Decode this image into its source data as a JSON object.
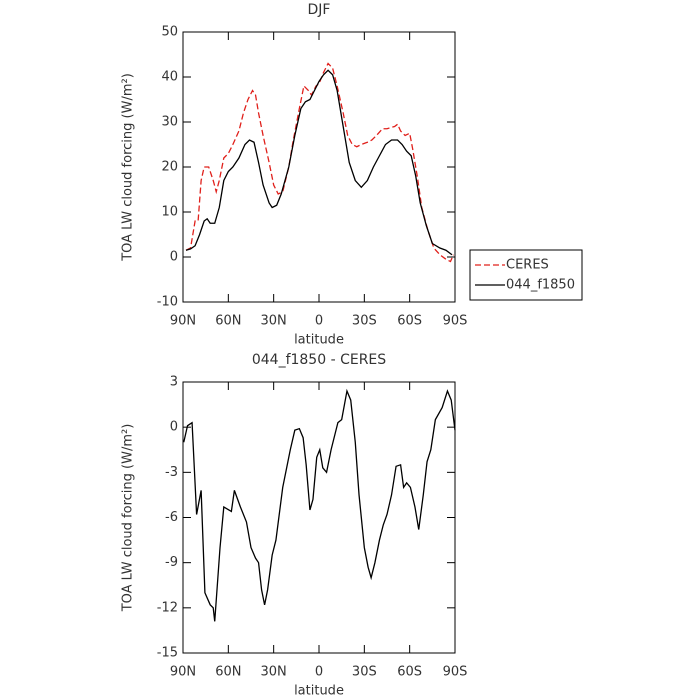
{
  "chart_data": [
    {
      "type": "line",
      "title": "DJF",
      "xlabel": "latitude",
      "ylabel": "TOA LW cloud forcing (W/m²)",
      "xlim": [
        90,
        -90
      ],
      "xticks": [
        {
          "value": 90,
          "label": "90N"
        },
        {
          "value": 60,
          "label": "60N"
        },
        {
          "value": 30,
          "label": "30N"
        },
        0,
        {
          "value": -30,
          "label": "30S"
        },
        {
          "value": -60,
          "label": "60S"
        },
        {
          "value": -90,
          "label": "90S"
        }
      ],
      "ylim": [
        -10,
        50
      ],
      "yticks": [
        -10,
        0,
        10,
        20,
        30,
        40,
        50
      ],
      "legend": "outside-right",
      "series": [
        {
          "name": "CERES",
          "color": "#e0201b",
          "line_style": "dashed",
          "x": [
            88,
            85,
            82,
            80,
            78,
            76,
            73,
            70,
            68,
            66,
            63,
            60,
            57,
            53,
            50,
            47,
            44,
            42,
            40,
            37,
            33,
            30,
            27,
            24,
            20,
            17,
            13,
            10,
            7,
            5,
            2,
            0,
            -3,
            -6,
            -9,
            -12,
            -16,
            -19,
            -22,
            -25,
            -28,
            -32,
            -35,
            -38,
            -42,
            -45,
            -50,
            -52,
            -54,
            -57,
            -60,
            -62,
            -65,
            -68,
            -72,
            -76,
            -80,
            -84,
            -87,
            -89
          ],
          "values": [
            1.5,
            2,
            8,
            8,
            17,
            20,
            20,
            17,
            14.5,
            17,
            22,
            23,
            25,
            28,
            32,
            35,
            37,
            36,
            32,
            27,
            21,
            16,
            14,
            14.5,
            20,
            26,
            33,
            38,
            37,
            36,
            38,
            38.5,
            41,
            43,
            42,
            38,
            32,
            27,
            25,
            24.5,
            25,
            25.5,
            26,
            27,
            28.5,
            28.5,
            29,
            29.5,
            28,
            27,
            27.5,
            24,
            18,
            11,
            6,
            2,
            0.5,
            -0.5,
            -1,
            0.5
          ]
        },
        {
          "name": "044_f1850",
          "color": "#000000",
          "line_style": "solid",
          "x": [
            88,
            85,
            82,
            79,
            76,
            74,
            72,
            69,
            66,
            63,
            60,
            57,
            53,
            49,
            46,
            43,
            40,
            37,
            33,
            31,
            28,
            25,
            20,
            16,
            12,
            9,
            6,
            3,
            0,
            -3,
            -6,
            -9,
            -12,
            -16,
            -20,
            -24,
            -28,
            -32,
            -36,
            -40,
            -44,
            -48,
            -52,
            -55,
            -58,
            -61,
            -64,
            -67,
            -71,
            -75,
            -80,
            -84,
            -88
          ],
          "values": [
            1.5,
            1.8,
            2.5,
            5,
            8,
            8.5,
            7.5,
            7.5,
            11,
            17,
            19,
            20,
            22,
            25,
            26,
            25.5,
            21,
            16,
            12,
            11,
            11.5,
            14,
            20,
            27,
            33,
            34.5,
            35,
            37,
            39,
            40.5,
            41.5,
            40.5,
            37,
            29,
            21,
            17,
            15.5,
            17,
            20,
            22.5,
            25,
            26,
            26,
            25,
            23.5,
            22.5,
            18,
            12,
            7,
            3,
            2,
            1.5,
            0.5
          ]
        }
      ]
    },
    {
      "type": "line",
      "title": "044_f1850 - CERES",
      "xlabel": "latitude",
      "ylabel": "TOA LW cloud forcing (W/m²)",
      "xlim": [
        90,
        -90
      ],
      "xticks": [
        {
          "value": 90,
          "label": "90N"
        },
        {
          "value": 60,
          "label": "60N"
        },
        {
          "value": 30,
          "label": "30N"
        },
        0,
        {
          "value": -30,
          "label": "30S"
        },
        {
          "value": -60,
          "label": "60S"
        },
        {
          "value": -90,
          "label": "90S"
        }
      ],
      "ylim": [
        -15,
        3
      ],
      "yticks": [
        -15,
        -12,
        -9,
        -6,
        -3,
        0,
        3
      ],
      "series": [
        {
          "color": "#000000",
          "line_style": "solid",
          "x": [
            89.5,
            87,
            84,
            81,
            78,
            75.5,
            72,
            70,
            69,
            65.5,
            63,
            58,
            56,
            52,
            48,
            45,
            42,
            40,
            38,
            36,
            34,
            31,
            28.5,
            24,
            19,
            16,
            13,
            10.5,
            8.5,
            6,
            4,
            1.5,
            -0.5,
            -2.5,
            -5,
            -8,
            -12.5,
            -15,
            -18.5,
            -21,
            -24,
            -26.5,
            -30,
            -32.5,
            -34.5,
            -37,
            -40,
            -42.5,
            -45,
            -48,
            -51,
            -54,
            -56,
            -58,
            -60.5,
            -63.5,
            -66,
            -69,
            -71.5,
            -74,
            -77,
            -81.5,
            -85,
            -87.5,
            -90
          ],
          "values": [
            -1,
            0.1,
            0.3,
            -5.8,
            -4.2,
            -11,
            -11.8,
            -12,
            -12.9,
            -8,
            -5.3,
            -5.6,
            -4.2,
            -5.3,
            -6.3,
            -8,
            -8.7,
            -9,
            -10.8,
            -11.8,
            -10.8,
            -8.5,
            -7.5,
            -4,
            -1.5,
            -0.2,
            -0.1,
            -0.7,
            -2.5,
            -5.5,
            -4.8,
            -2,
            -1.5,
            -2.7,
            -3,
            -1.5,
            0.3,
            0.5,
            2.4,
            1.8,
            -1,
            -4.5,
            -8,
            -9.3,
            -10,
            -9,
            -7.5,
            -6.5,
            -5.8,
            -4.5,
            -2.6,
            -2.5,
            -4,
            -3.7,
            -4,
            -5.3,
            -6.8,
            -4.5,
            -2.3,
            -1.5,
            0.5,
            1.3,
            2.4,
            1.8,
            -0.2
          ]
        }
      ]
    }
  ]
}
